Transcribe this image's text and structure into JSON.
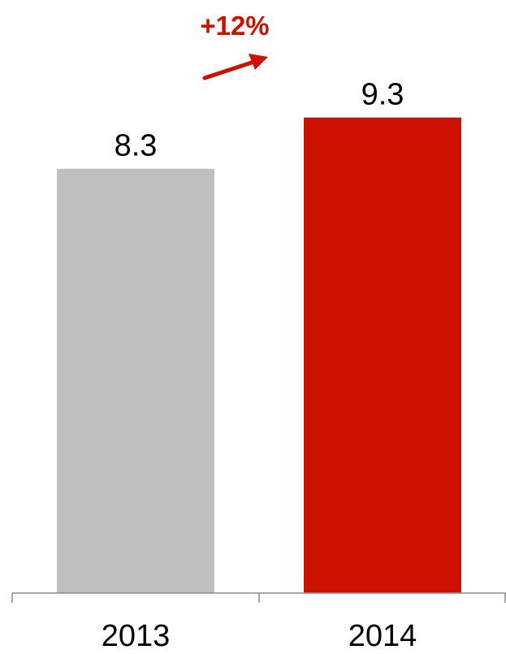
{
  "chart_data": {
    "type": "bar",
    "categories": [
      "2013",
      "2014"
    ],
    "values": [
      8.3,
      9.3
    ],
    "value_labels": [
      "8.3",
      "9.3"
    ],
    "bar_colors": [
      "#bfbfbf",
      "#cc1100"
    ],
    "title": "",
    "xlabel": "",
    "ylabel": "",
    "ylim": [
      0,
      11.6
    ],
    "grid": false,
    "legend": "none",
    "annotation": {
      "text": "+12%",
      "color": "#cc1100",
      "icon": "up-right-arrow-icon"
    }
  }
}
